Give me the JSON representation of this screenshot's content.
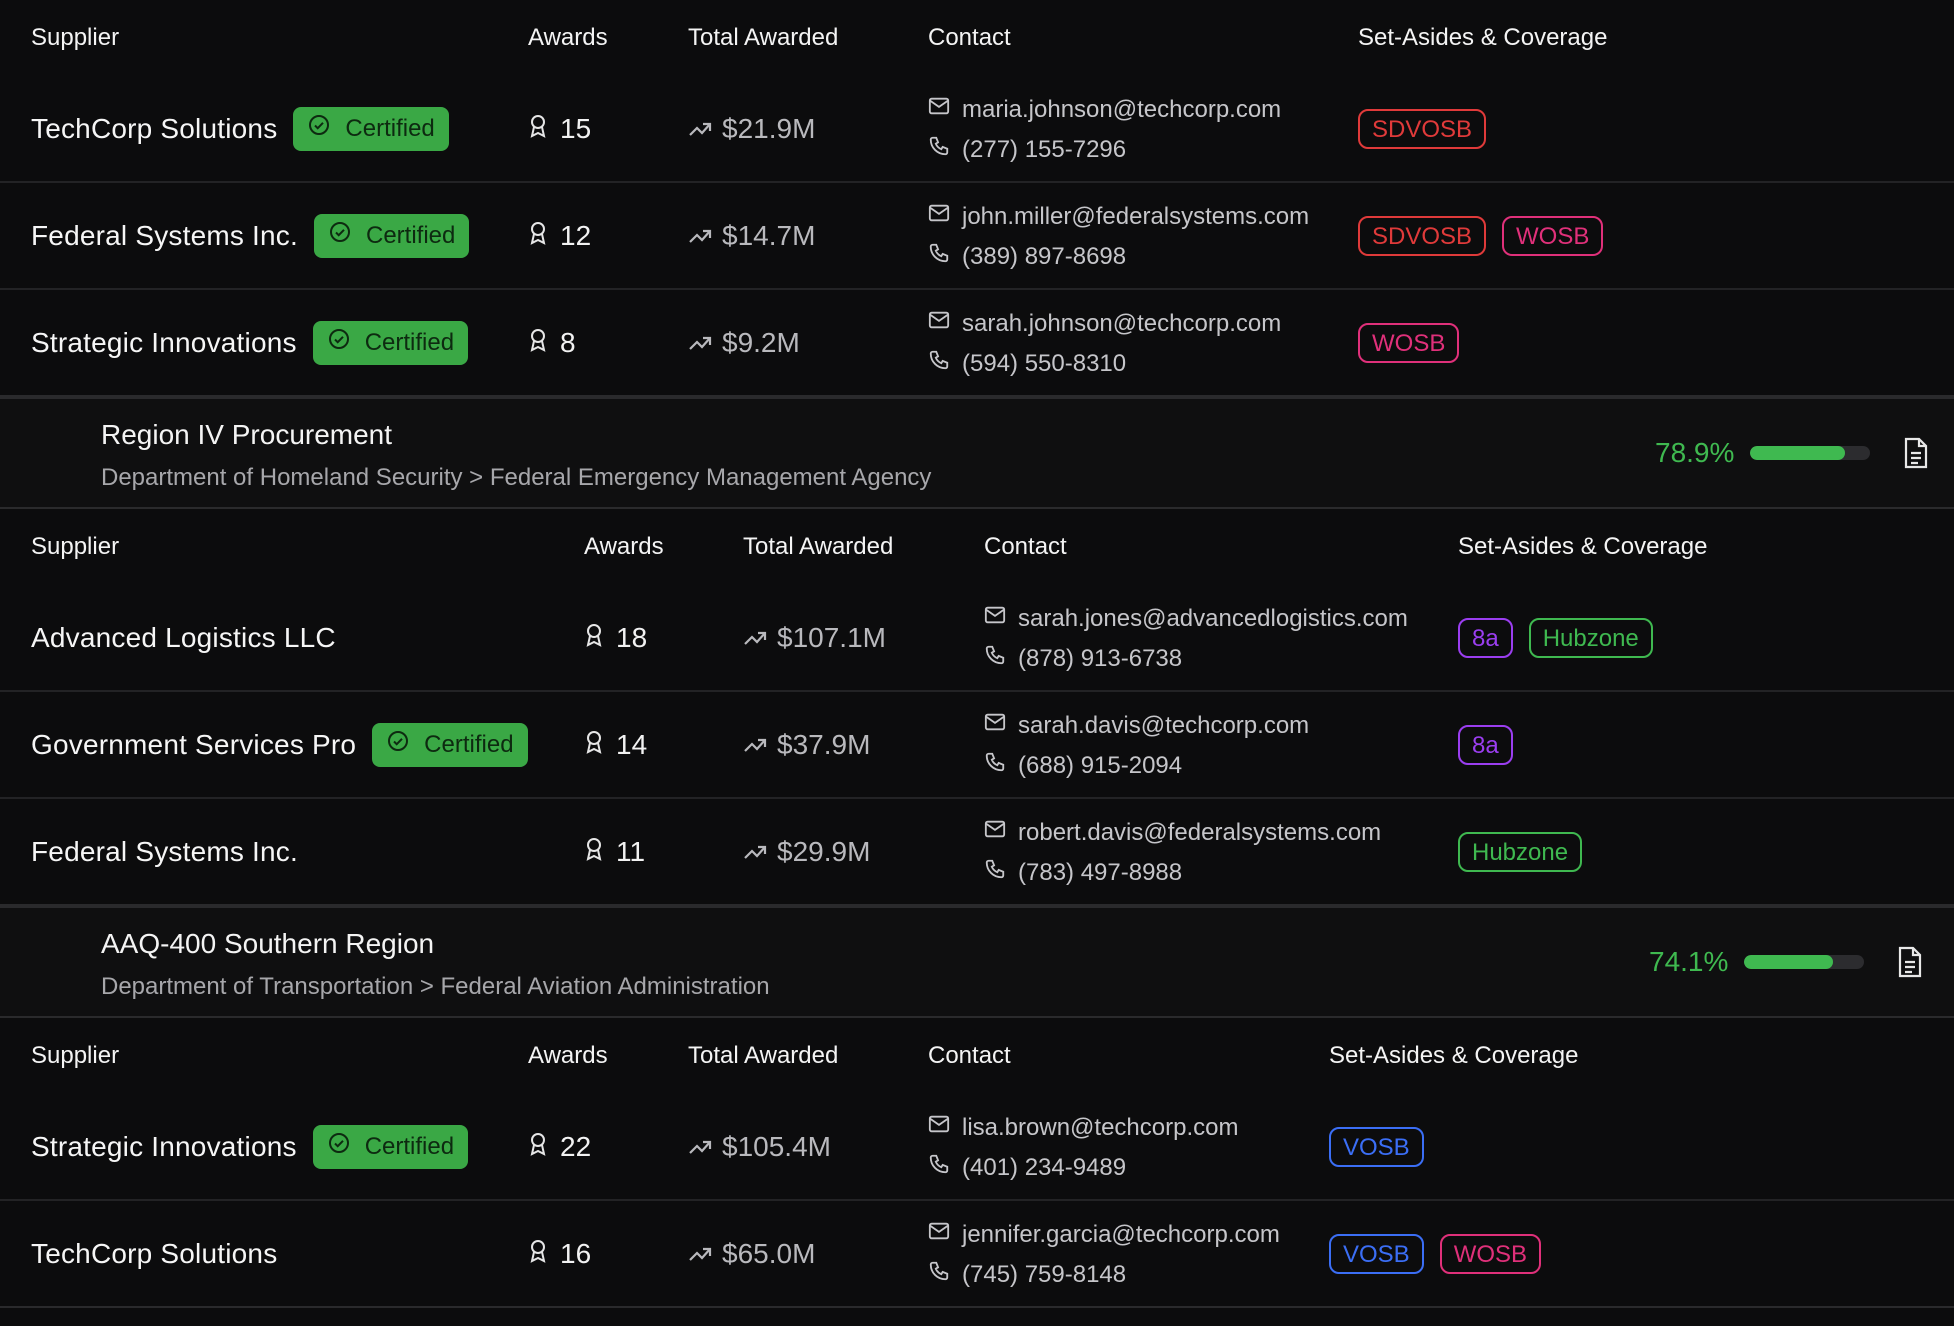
{
  "colors": {
    "background": "#0c0c0d",
    "certified_bg": "#3aa845",
    "tag_sdvosb": "#e03a3a",
    "tag_wosb": "#e0307a",
    "tag_8a": "#9b3ef0",
    "tag_hubzone": "#3fb950",
    "tag_vosb": "#3b6ef5",
    "coverage": "#3fb950"
  },
  "columns": {
    "supplier": "Supplier",
    "awards": "Awards",
    "total": "Total Awarded",
    "contact": "Contact",
    "setasides": "Set-Asides & Coverage"
  },
  "certified_label": "Certified",
  "groups": [
    {
      "rows": [
        {
          "supplier": "TechCorp Solutions",
          "certified": true,
          "awards": "15",
          "total": "$21.9M",
          "email": "maria.johnson@techcorp.com",
          "phone": "(277) 155-7296",
          "tags": [
            "SDVOSB"
          ]
        },
        {
          "supplier": "Federal Systems Inc.",
          "certified": true,
          "awards": "12",
          "total": "$14.7M",
          "email": "john.miller@federalsystems.com",
          "phone": "(389) 897-8698",
          "tags": [
            "SDVOSB",
            "WOSB"
          ]
        },
        {
          "supplier": "Strategic Innovations",
          "certified": true,
          "awards": "8",
          "total": "$9.2M",
          "email": "sarah.johnson@techcorp.com",
          "phone": "(594) 550-8310",
          "tags": [
            "WOSB"
          ]
        }
      ]
    },
    {
      "title": "Region IV Procurement",
      "path": "Department of Homeland Security > Federal Emergency Management Agency",
      "coverage_label": "78.9%",
      "coverage_value": 0.789,
      "rows": [
        {
          "supplier": "Advanced Logistics LLC",
          "certified": false,
          "awards": "18",
          "total": "$107.1M",
          "email": "sarah.jones@advancedlogistics.com",
          "phone": "(878) 913-6738",
          "tags": [
            "8a",
            "Hubzone"
          ]
        },
        {
          "supplier": "Government Services Pro",
          "certified": true,
          "awards": "14",
          "total": "$37.9M",
          "email": "sarah.davis@techcorp.com",
          "phone": "(688) 915-2094",
          "tags": [
            "8a"
          ]
        },
        {
          "supplier": "Federal Systems Inc.",
          "certified": false,
          "awards": "11",
          "total": "$29.9M",
          "email": "robert.davis@federalsystems.com",
          "phone": "(783) 497-8988",
          "tags": [
            "Hubzone"
          ]
        }
      ]
    },
    {
      "title": "AAQ-400 Southern Region",
      "path": "Department of Transportation > Federal Aviation Administration",
      "coverage_label": "74.1%",
      "coverage_value": 0.741,
      "rows": [
        {
          "supplier": "Strategic Innovations",
          "certified": true,
          "awards": "22",
          "total": "$105.4M",
          "email": "lisa.brown@techcorp.com",
          "phone": "(401) 234-9489",
          "tags": [
            "VOSB"
          ]
        },
        {
          "supplier": "TechCorp Solutions",
          "certified": false,
          "awards": "16",
          "total": "$65.0M",
          "email": "jennifer.garcia@techcorp.com",
          "phone": "(745) 759-8148",
          "tags": [
            "VOSB",
            "WOSB"
          ]
        }
      ]
    }
  ]
}
